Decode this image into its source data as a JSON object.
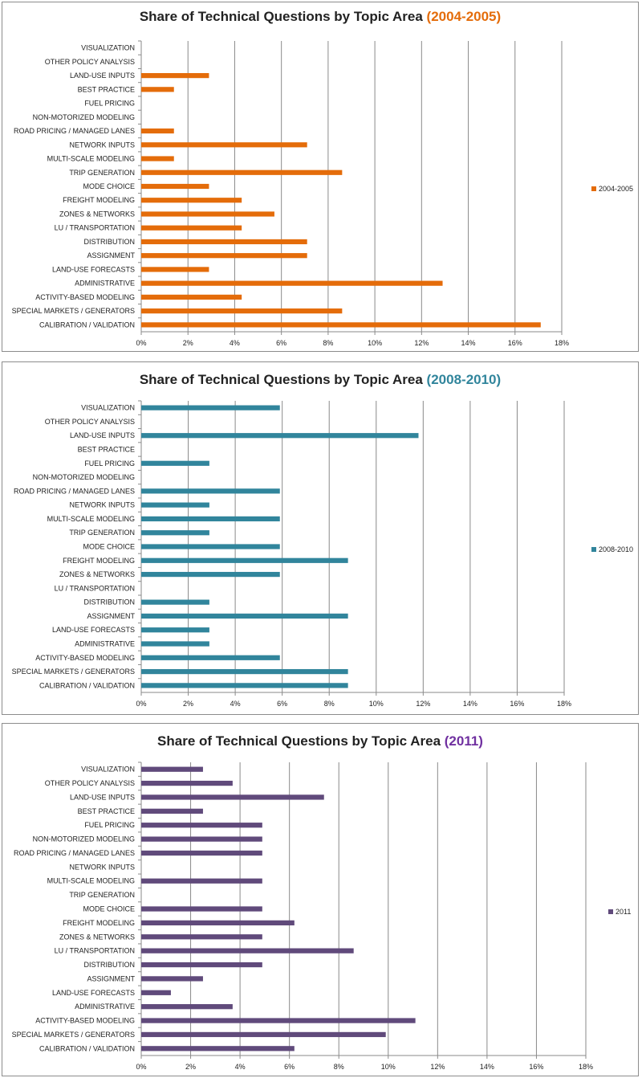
{
  "chart_data": [
    {
      "type": "bar",
      "orientation": "horizontal",
      "title_main": "Share of Technical Questions by Topic Area ",
      "title_period": "(2004-2005)",
      "title_color": "#e46c0a",
      "color": "#e46c0a",
      "series_name": "2004-2005",
      "legend_position": "right",
      "xlim": [
        0,
        18
      ],
      "ticks": [
        "0%",
        "2%",
        "4%",
        "6%",
        "8%",
        "10%",
        "12%",
        "14%",
        "16%",
        "18%"
      ],
      "grid": true,
      "categories": [
        "VISUALIZATION",
        "OTHER POLICY ANALYSIS",
        "LAND-USE INPUTS",
        "BEST PRACTICE",
        "FUEL PRICING",
        "NON-MOTORIZED MODELING",
        "ROAD PRICING / MANAGED LANES",
        "NETWORK INPUTS",
        "MULTI-SCALE MODELING",
        "TRIP GENERATION",
        "MODE CHOICE",
        "FREIGHT MODELING",
        "ZONES & NETWORKS",
        "LU / TRANSPORTATION",
        "DISTRIBUTION",
        "ASSIGNMENT",
        "LAND-USE FORECASTS",
        "ADMINISTRATIVE",
        "ACTIVITY-BASED MODELING",
        "SPECIAL MARKETS / GENERATORS",
        "CALIBRATION / VALIDATION"
      ],
      "values": [
        0,
        0,
        2.9,
        1.4,
        0,
        0,
        1.4,
        7.1,
        1.4,
        8.6,
        2.9,
        4.3,
        5.7,
        4.3,
        7.1,
        7.1,
        2.9,
        12.9,
        4.3,
        8.6,
        17.1
      ]
    },
    {
      "type": "bar",
      "orientation": "horizontal",
      "title_main": "Share of Technical Questions by Topic Area ",
      "title_period": "(2008-2010)",
      "title_color": "#31859c",
      "color": "#31859c",
      "series_name": "2008-2010",
      "legend_position": "right",
      "xlim": [
        0,
        18
      ],
      "ticks": [
        "0%",
        "2%",
        "4%",
        "6%",
        "8%",
        "10%",
        "12%",
        "14%",
        "16%",
        "18%"
      ],
      "grid": true,
      "categories": [
        "VISUALIZATION",
        "OTHER POLICY ANALYSIS",
        "LAND-USE INPUTS",
        "BEST PRACTICE",
        "FUEL PRICING",
        "NON-MOTORIZED MODELING",
        "ROAD PRICING / MANAGED LANES",
        "NETWORK INPUTS",
        "MULTI-SCALE MODELING",
        "TRIP GENERATION",
        "MODE CHOICE",
        "FREIGHT MODELING",
        "ZONES & NETWORKS",
        "LU / TRANSPORTATION",
        "DISTRIBUTION",
        "ASSIGNMENT",
        "LAND-USE FORECASTS",
        "ADMINISTRATIVE",
        "ACTIVITY-BASED MODELING",
        "SPECIAL MARKETS / GENERATORS",
        "CALIBRATION / VALIDATION"
      ],
      "values": [
        5.9,
        0,
        11.8,
        0,
        2.9,
        0,
        5.9,
        2.9,
        5.9,
        2.9,
        5.9,
        8.8,
        5.9,
        0,
        2.9,
        8.8,
        2.9,
        2.9,
        5.9,
        8.8,
        8.8
      ]
    },
    {
      "type": "bar",
      "orientation": "horizontal",
      "title_main": "Share of Technical Questions by Topic Area ",
      "title_period": "(2011)",
      "title_color": "#7030a0",
      "color": "#604a7b",
      "series_name": "2011",
      "legend_position": "right",
      "xlim": [
        0,
        18
      ],
      "ticks": [
        "0%",
        "2%",
        "4%",
        "6%",
        "8%",
        "10%",
        "12%",
        "14%",
        "16%",
        "18%"
      ],
      "grid": true,
      "categories": [
        "VISUALIZATION",
        "OTHER POLICY ANALYSIS",
        "LAND-USE INPUTS",
        "BEST PRACTICE",
        "FUEL PRICING",
        "NON-MOTORIZED MODELING",
        "ROAD PRICING / MANAGED LANES",
        "NETWORK INPUTS",
        "MULTI-SCALE MODELING",
        "TRIP GENERATION",
        "MODE CHOICE",
        "FREIGHT MODELING",
        "ZONES & NETWORKS",
        "LU / TRANSPORTATION",
        "DISTRIBUTION",
        "ASSIGNMENT",
        "LAND-USE FORECASTS",
        "ADMINISTRATIVE",
        "ACTIVITY-BASED MODELING",
        "SPECIAL MARKETS / GENERATORS",
        "CALIBRATION / VALIDATION"
      ],
      "values": [
        2.5,
        3.7,
        7.4,
        2.5,
        4.9,
        4.9,
        4.9,
        0,
        4.9,
        0,
        4.9,
        6.2,
        4.9,
        8.6,
        4.9,
        2.5,
        1.2,
        3.7,
        11.1,
        9.9,
        6.2
      ]
    }
  ]
}
